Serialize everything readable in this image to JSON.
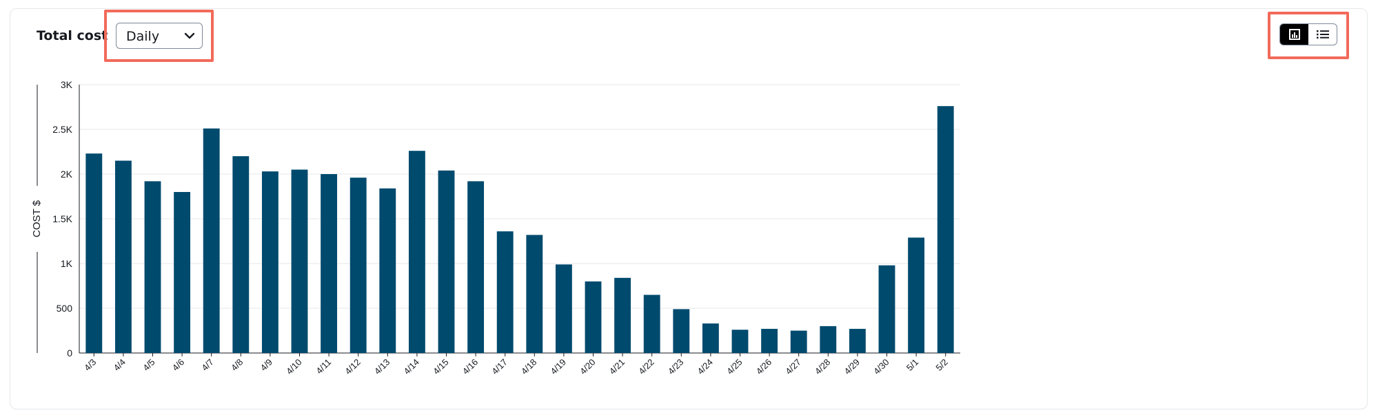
{
  "header": {
    "title": "Total cost",
    "granularity": {
      "selected": "Daily"
    },
    "view_toggle": {
      "active": "chart",
      "icons": [
        "bar-chart-icon",
        "list-icon"
      ]
    }
  },
  "colors": {
    "bar": "#004a6e",
    "highlight": "#f26a5a",
    "grid": "#e4e7ea",
    "toggle_active": "#000000"
  },
  "chart_data": {
    "type": "bar",
    "ylabel": "COST $",
    "xlabel": "",
    "ylim": [
      0,
      3000
    ],
    "y_ticks": [
      0,
      500,
      1000,
      1500,
      2000,
      2500,
      3000
    ],
    "y_tick_labels": [
      "0",
      "500",
      "1K",
      "1.5K",
      "2K",
      "2.5K",
      "3K"
    ],
    "grid": true,
    "categories": [
      "4/3",
      "4/4",
      "4/5",
      "4/6",
      "4/7",
      "4/8",
      "4/9",
      "4/10",
      "4/11",
      "4/12",
      "4/13",
      "4/14",
      "4/15",
      "4/16",
      "4/17",
      "4/18",
      "4/19",
      "4/20",
      "4/21",
      "4/22",
      "4/23",
      "4/24",
      "4/25",
      "4/26",
      "4/27",
      "4/28",
      "4/29",
      "4/30",
      "5/1",
      "5/2"
    ],
    "values": [
      2230,
      2150,
      1920,
      1800,
      2510,
      2200,
      2030,
      2050,
      2000,
      1960,
      1840,
      2260,
      2040,
      1920,
      1360,
      1320,
      990,
      800,
      840,
      650,
      490,
      330,
      260,
      270,
      250,
      300,
      270,
      980,
      1290,
      2760
    ]
  }
}
